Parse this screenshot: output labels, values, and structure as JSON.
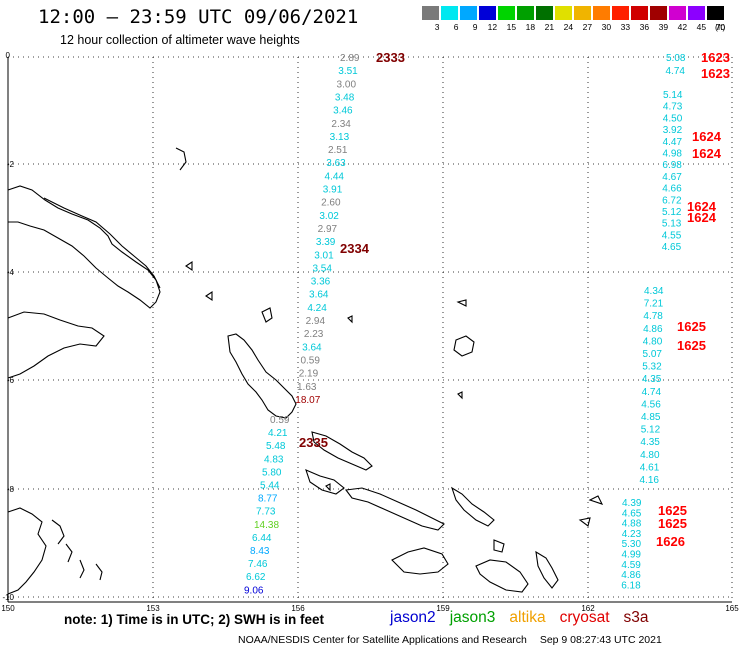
{
  "header": {
    "title": "12:00 – 23:59 UTC 09/06/2021",
    "subtitle": "12 hour collection of altimeter wave heights"
  },
  "legend": {
    "unit": "(ft)",
    "items": [
      {
        "label": "3",
        "color": "#7a7a7a"
      },
      {
        "label": "6",
        "color": "#00e8f0"
      },
      {
        "label": "9",
        "color": "#00a8ff"
      },
      {
        "label": "12",
        "color": "#0000d8"
      },
      {
        "label": "15",
        "color": "#00d400"
      },
      {
        "label": "18",
        "color": "#00a000"
      },
      {
        "label": "21",
        "color": "#007000"
      },
      {
        "label": "24",
        "color": "#e0e000"
      },
      {
        "label": "27",
        "color": "#f0b400"
      },
      {
        "label": "30",
        "color": "#ff7c00"
      },
      {
        "label": "33",
        "color": "#ff2000"
      },
      {
        "label": "36",
        "color": "#d00000"
      },
      {
        "label": "39",
        "color": "#a00000"
      },
      {
        "label": "42",
        "color": "#d000d0"
      },
      {
        "label": "45",
        "color": "#8c00ff"
      },
      {
        "label": "70",
        "color": "#000000"
      }
    ]
  },
  "axes": {
    "lat_labels": [
      "0",
      "-2",
      "-4",
      "-6",
      "-8",
      "-10"
    ],
    "lon_labels": [
      "150",
      "153",
      "156",
      "159",
      "162",
      "165"
    ]
  },
  "tracks": {
    "t2333": [
      {
        "v": "2.89",
        "c": "#808080"
      },
      {
        "v": "3.51",
        "c": "#00c8d8"
      },
      {
        "v": "3.00",
        "c": "#808080"
      },
      {
        "v": "3.48",
        "c": "#00c8d8"
      },
      {
        "v": "3.46",
        "c": "#00c8d8"
      },
      {
        "v": "2.34",
        "c": "#808080"
      },
      {
        "v": "3.13",
        "c": "#00c8d8"
      },
      {
        "v": "2.51",
        "c": "#808080"
      },
      {
        "v": "3.63",
        "c": "#00c8d8"
      },
      {
        "v": "4.44",
        "c": "#00c8d8"
      },
      {
        "v": "3.91",
        "c": "#00c8d8"
      },
      {
        "v": "2.60",
        "c": "#808080"
      },
      {
        "v": "3.02",
        "c": "#00c8d8"
      },
      {
        "v": "2.97",
        "c": "#808080"
      },
      {
        "v": "3.39",
        "c": "#00c8d8"
      },
      {
        "v": "3.01",
        "c": "#00c8d8"
      },
      {
        "v": "3.54",
        "c": "#00c8d8"
      },
      {
        "v": "3.36",
        "c": "#00c8d8"
      },
      {
        "v": "3.64",
        "c": "#00c8d8"
      },
      {
        "v": "4.24",
        "c": "#00c8d8"
      },
      {
        "v": "2.94",
        "c": "#808080"
      },
      {
        "v": "2.23",
        "c": "#808080"
      },
      {
        "v": "3.64",
        "c": "#00c8d8"
      },
      {
        "v": "0.59",
        "c": "#808080"
      },
      {
        "v": "2.19",
        "c": "#808080"
      },
      {
        "v": "1.63",
        "c": "#808080"
      },
      {
        "v": "18.07",
        "c": "#a00000"
      }
    ],
    "t2335": [
      {
        "v": "0.59",
        "c": "#808080"
      },
      {
        "v": "4.21",
        "c": "#00c8d8"
      },
      {
        "v": "5.48",
        "c": "#00c8d8"
      },
      {
        "v": "4.83",
        "c": "#00c8d8"
      },
      {
        "v": "5.80",
        "c": "#00c8d8"
      },
      {
        "v": "5.44",
        "c": "#00c8d8"
      },
      {
        "v": "8.77",
        "c": "#00a8ff"
      },
      {
        "v": "7.73",
        "c": "#00c8d8"
      },
      {
        "v": "14.38",
        "c": "#60d020"
      },
      {
        "v": "6.44",
        "c": "#00c8d8"
      },
      {
        "v": "8.43",
        "c": "#00a8ff"
      },
      {
        "v": "7.46",
        "c": "#00c8d8"
      },
      {
        "v": "6.62",
        "c": "#00c8d8"
      },
      {
        "v": "9.06",
        "c": "#0000d8"
      }
    ],
    "t1623": [
      {
        "v": "5.08",
        "c": "#00c8d8"
      },
      {
        "v": "4.74",
        "c": "#00c8d8"
      }
    ],
    "t1624": [
      {
        "v": "5.14",
        "c": "#00c8d8"
      },
      {
        "v": "4.73",
        "c": "#00c8d8"
      },
      {
        "v": "4.50",
        "c": "#00c8d8"
      },
      {
        "v": "3.92",
        "c": "#00c8d8"
      },
      {
        "v": "4.47",
        "c": "#00c8d8"
      },
      {
        "v": "4.98",
        "c": "#00c8d8"
      },
      {
        "v": "6.98",
        "c": "#00c8d8"
      },
      {
        "v": "4.67",
        "c": "#00c8d8"
      },
      {
        "v": "4.66",
        "c": "#00c8d8"
      },
      {
        "v": "6.72",
        "c": "#00c8d8"
      },
      {
        "v": "5.12",
        "c": "#00c8d8"
      },
      {
        "v": "5.13",
        "c": "#00c8d8"
      },
      {
        "v": "4.55",
        "c": "#00c8d8"
      },
      {
        "v": "4.65",
        "c": "#00c8d8"
      }
    ],
    "t1625": [
      {
        "v": "4.34",
        "c": "#00c8d8"
      },
      {
        "v": "7.21",
        "c": "#00c8d8"
      },
      {
        "v": "4.78",
        "c": "#00c8d8"
      },
      {
        "v": "4.86",
        "c": "#00c8d8"
      },
      {
        "v": "4.80",
        "c": "#00c8d8"
      },
      {
        "v": "5.07",
        "c": "#00c8d8"
      },
      {
        "v": "5.32",
        "c": "#00c8d8"
      },
      {
        "v": "4.35",
        "c": "#00c8d8"
      },
      {
        "v": "4.74",
        "c": "#00c8d8"
      },
      {
        "v": "4.56",
        "c": "#00c8d8"
      },
      {
        "v": "4.85",
        "c": "#00c8d8"
      },
      {
        "v": "5.12",
        "c": "#00c8d8"
      },
      {
        "v": "4.35",
        "c": "#00c8d8"
      },
      {
        "v": "4.80",
        "c": "#00c8d8"
      },
      {
        "v": "4.61",
        "c": "#00c8d8"
      },
      {
        "v": "4.16",
        "c": "#00c8d8"
      }
    ],
    "t1626": [
      {
        "v": "4.39",
        "c": "#00c8d8"
      },
      {
        "v": "4.65",
        "c": "#00c8d8"
      },
      {
        "v": "4.88",
        "c": "#00c8d8"
      },
      {
        "v": "4.23",
        "c": "#00c8d8"
      },
      {
        "v": "5.30",
        "c": "#00c8d8"
      },
      {
        "v": "4.99",
        "c": "#00c8d8"
      },
      {
        "v": "4.59",
        "c": "#00c8d8"
      },
      {
        "v": "4.86",
        "c": "#00c8d8"
      },
      {
        "v": "6.18",
        "c": "#00c8d8"
      }
    ]
  },
  "pass_tags": [
    {
      "label": "2333",
      "color": "#800000"
    },
    {
      "label": "2334",
      "color": "#800000"
    },
    {
      "label": "2335",
      "color": "#800000"
    },
    {
      "label": "1623",
      "color": "#ff0000"
    },
    {
      "label": "1623",
      "color": "#ff0000"
    },
    {
      "label": "1624",
      "color": "#ff0000"
    },
    {
      "label": "1624",
      "color": "#ff0000"
    },
    {
      "label": "1624",
      "color": "#ff0000"
    },
    {
      "label": "1624",
      "color": "#ff0000"
    },
    {
      "label": "1625",
      "color": "#ff0000"
    },
    {
      "label": "1625",
      "color": "#ff0000"
    },
    {
      "label": "1625",
      "color": "#ff0000"
    },
    {
      "label": "1625",
      "color": "#ff0000"
    },
    {
      "label": "1626",
      "color": "#ff0000"
    }
  ],
  "footer": {
    "note": "note:  1) Time is in UTC;  2) SWH is in feet",
    "satellites": [
      {
        "name": "jason2",
        "color": "#0000d0"
      },
      {
        "name": "jason3",
        "color": "#00a000"
      },
      {
        "name": "altika",
        "color": "#f0a000"
      },
      {
        "name": "cryosat",
        "color": "#e00000"
      },
      {
        "name": "s3a",
        "color": "#800000"
      }
    ],
    "credit": "NOAA/NESDIS Center for Satellite Applications and Research",
    "timestamp": "Sep  9 08:27:43 UTC 2021"
  }
}
